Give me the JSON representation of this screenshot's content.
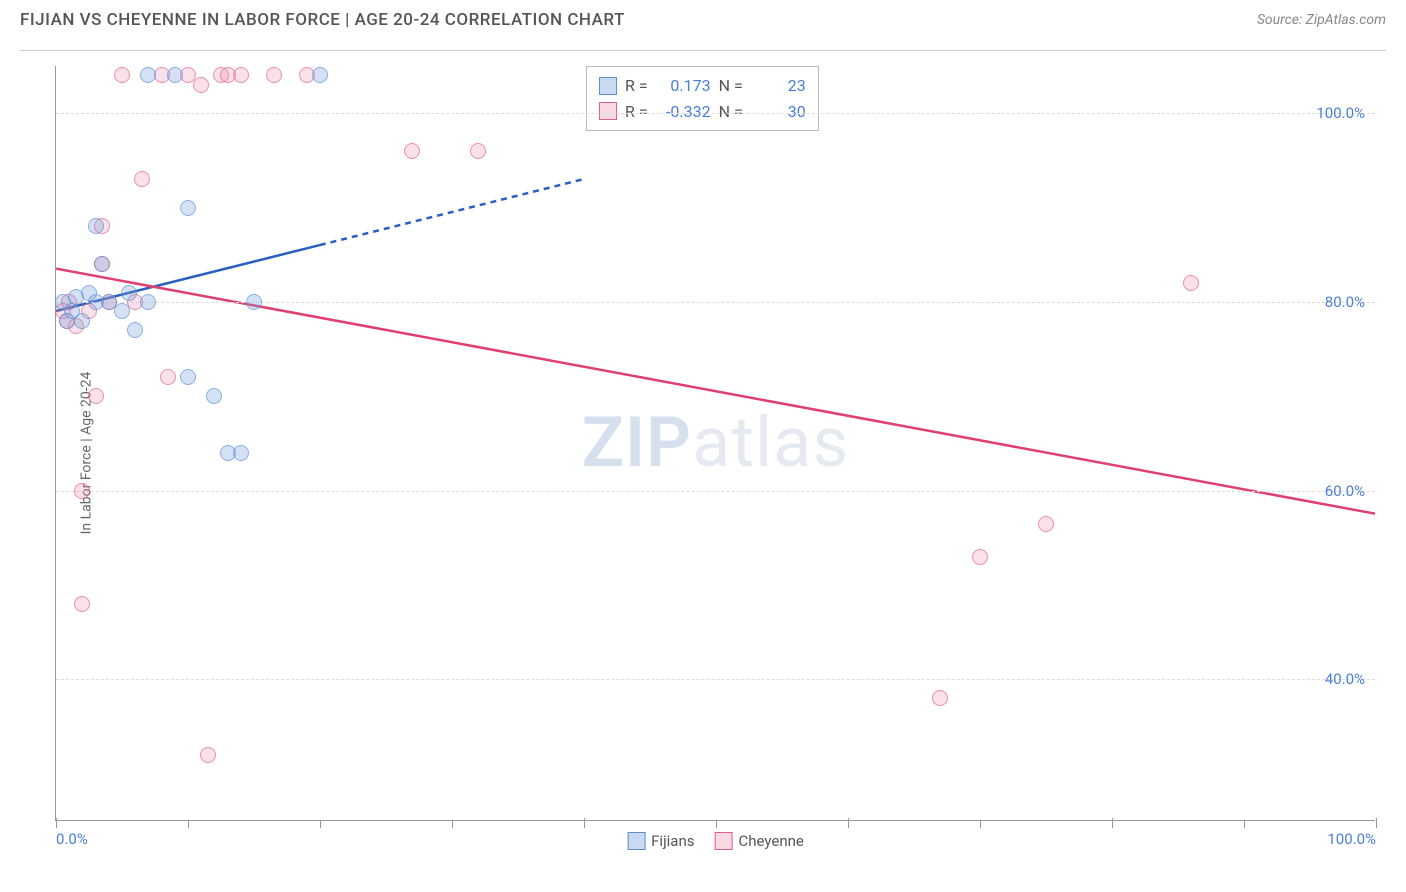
{
  "header": {
    "title": "FIJIAN VS CHEYENNE IN LABOR FORCE | AGE 20-24 CORRELATION CHART",
    "source": "Source: ZipAtlas.com"
  },
  "chart": {
    "type": "scatter",
    "y_axis_label": "In Labor Force | Age 20-24",
    "background_color": "#ffffff",
    "grid_color": "#dddddd",
    "axis_color": "#999999",
    "xlim": [
      0,
      100
    ],
    "ylim": [
      25,
      105
    ],
    "y_ticks": [
      {
        "value": 40,
        "label": "40.0%"
      },
      {
        "value": 60,
        "label": "60.0%"
      },
      {
        "value": 80,
        "label": "80.0%"
      },
      {
        "value": 100,
        "label": "100.0%"
      }
    ],
    "x_ticks_major": [
      0,
      40,
      60,
      80,
      100
    ],
    "x_ticks_minor": [
      10,
      20,
      30,
      50,
      70,
      90
    ],
    "x_labels": [
      {
        "value": 0,
        "label": "0.0%",
        "align": "left"
      },
      {
        "value": 100,
        "label": "100.0%",
        "align": "right"
      }
    ],
    "marker_size": 16,
    "series_a": {
      "name": "Fijians",
      "color_fill": "rgba(120,160,220,0.45)",
      "color_stroke": "#5a8fd0",
      "r_value": "0.173",
      "n_value": "23",
      "trend": {
        "x1": 0,
        "y1": 79,
        "x2": 20,
        "y2": 86,
        "x_solid_end": 20,
        "x_dash_end": 40,
        "y_dash_end": 93,
        "color": "#2860c0",
        "width": 2.5
      },
      "points": [
        {
          "x": 0.5,
          "y": 80
        },
        {
          "x": 0.8,
          "y": 78
        },
        {
          "x": 1.2,
          "y": 79
        },
        {
          "x": 1.5,
          "y": 80.5
        },
        {
          "x": 2,
          "y": 78
        },
        {
          "x": 2.5,
          "y": 81
        },
        {
          "x": 3,
          "y": 80
        },
        {
          "x": 3.5,
          "y": 84
        },
        {
          "x": 3,
          "y": 88
        },
        {
          "x": 4,
          "y": 80
        },
        {
          "x": 5,
          "y": 79
        },
        {
          "x": 5.5,
          "y": 81
        },
        {
          "x": 6,
          "y": 77
        },
        {
          "x": 7,
          "y": 104
        },
        {
          "x": 7,
          "y": 80
        },
        {
          "x": 9,
          "y": 104
        },
        {
          "x": 10,
          "y": 90
        },
        {
          "x": 10,
          "y": 72
        },
        {
          "x": 12,
          "y": 70
        },
        {
          "x": 13,
          "y": 64
        },
        {
          "x": 14,
          "y": 64
        },
        {
          "x": 15,
          "y": 80
        },
        {
          "x": 20,
          "y": 104
        }
      ]
    },
    "series_b": {
      "name": "Cheyenne",
      "color_fill": "rgba(235,130,160,0.35)",
      "color_stroke": "#e06090",
      "r_value": "-0.332",
      "n_value": "30",
      "trend": {
        "x1": 0,
        "y1": 83.5,
        "x2": 100,
        "y2": 57.5,
        "color": "#e04070",
        "width": 2.5
      },
      "points": [
        {
          "x": 0.5,
          "y": 79
        },
        {
          "x": 0.8,
          "y": 78
        },
        {
          "x": 1,
          "y": 80
        },
        {
          "x": 1.5,
          "y": 77.5
        },
        {
          "x": 2,
          "y": 60
        },
        {
          "x": 2,
          "y": 48
        },
        {
          "x": 2.5,
          "y": 79
        },
        {
          "x": 3,
          "y": 70
        },
        {
          "x": 3.5,
          "y": 84
        },
        {
          "x": 3.5,
          "y": 88
        },
        {
          "x": 4,
          "y": 80
        },
        {
          "x": 5,
          "y": 104
        },
        {
          "x": 6,
          "y": 80
        },
        {
          "x": 6.5,
          "y": 93
        },
        {
          "x": 8,
          "y": 104
        },
        {
          "x": 8.5,
          "y": 72
        },
        {
          "x": 10,
          "y": 104
        },
        {
          "x": 11,
          "y": 103
        },
        {
          "x": 11.5,
          "y": 32
        },
        {
          "x": 12.5,
          "y": 104
        },
        {
          "x": 13,
          "y": 104
        },
        {
          "x": 14,
          "y": 104
        },
        {
          "x": 16.5,
          "y": 104
        },
        {
          "x": 19,
          "y": 104
        },
        {
          "x": 27,
          "y": 96
        },
        {
          "x": 32,
          "y": 96
        },
        {
          "x": 67,
          "y": 38
        },
        {
          "x": 70,
          "y": 53
        },
        {
          "x": 75,
          "y": 56.5
        },
        {
          "x": 86,
          "y": 82
        }
      ]
    },
    "stats_legend": {
      "r_prefix": "R =",
      "n_prefix": "N ="
    },
    "watermark": {
      "part1": "ZIP",
      "part2": "atlas"
    }
  }
}
